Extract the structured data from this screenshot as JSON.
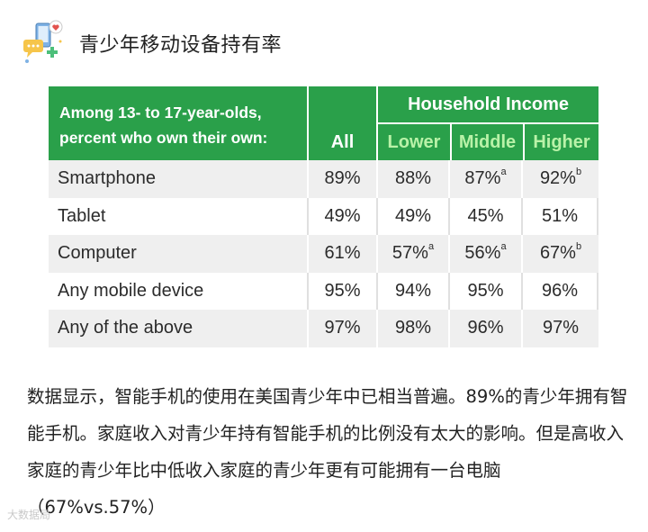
{
  "header": {
    "title": "青少年移动设备持有率",
    "icon": "mobile-devices-icon"
  },
  "table": {
    "description": "Among 13- to 17-year-olds, percent who own their own:",
    "col_all": "All",
    "group_label": "Household Income",
    "col_lower": "Lower",
    "col_middle": "Middle",
    "col_higher": "Higher",
    "rows": [
      {
        "label": "Smartphone",
        "all": "89%",
        "lower": "88%",
        "lower_sup": "",
        "middle": "87%",
        "middle_sup": "a",
        "higher": "92%",
        "higher_sup": "b"
      },
      {
        "label": "Tablet",
        "all": "49%",
        "lower": "49%",
        "lower_sup": "",
        "middle": "45%",
        "middle_sup": "",
        "higher": "51%",
        "higher_sup": ""
      },
      {
        "label": "Computer",
        "all": "61%",
        "lower": "57%",
        "lower_sup": "a",
        "middle": "56%",
        "middle_sup": "a",
        "higher": "67%",
        "higher_sup": "b"
      },
      {
        "label": "Any mobile device",
        "all": "95%",
        "lower": "94%",
        "lower_sup": "",
        "middle": "95%",
        "middle_sup": "",
        "higher": "96%",
        "higher_sup": ""
      },
      {
        "label": "Any of the above",
        "all": "97%",
        "lower": "98%",
        "lower_sup": "",
        "middle": "96%",
        "middle_sup": "",
        "higher": "97%",
        "higher_sup": ""
      }
    ]
  },
  "paragraph": "数据显示，智能手机的使用在美国青少年中已相当普遍。89%的青少年拥有智能手机。家庭收入对青少年持有智能手机的比例没有太大的影响。但是高收入家庭的青少年比中低收入家庭的青少年更有可能拥有一台电脑（67%vs.57%）",
  "watermark": "大数据局",
  "colors": {
    "header_green": "#2aa04a",
    "subheader_text": "#b9f2a8",
    "row_stripe": "#efefef"
  }
}
